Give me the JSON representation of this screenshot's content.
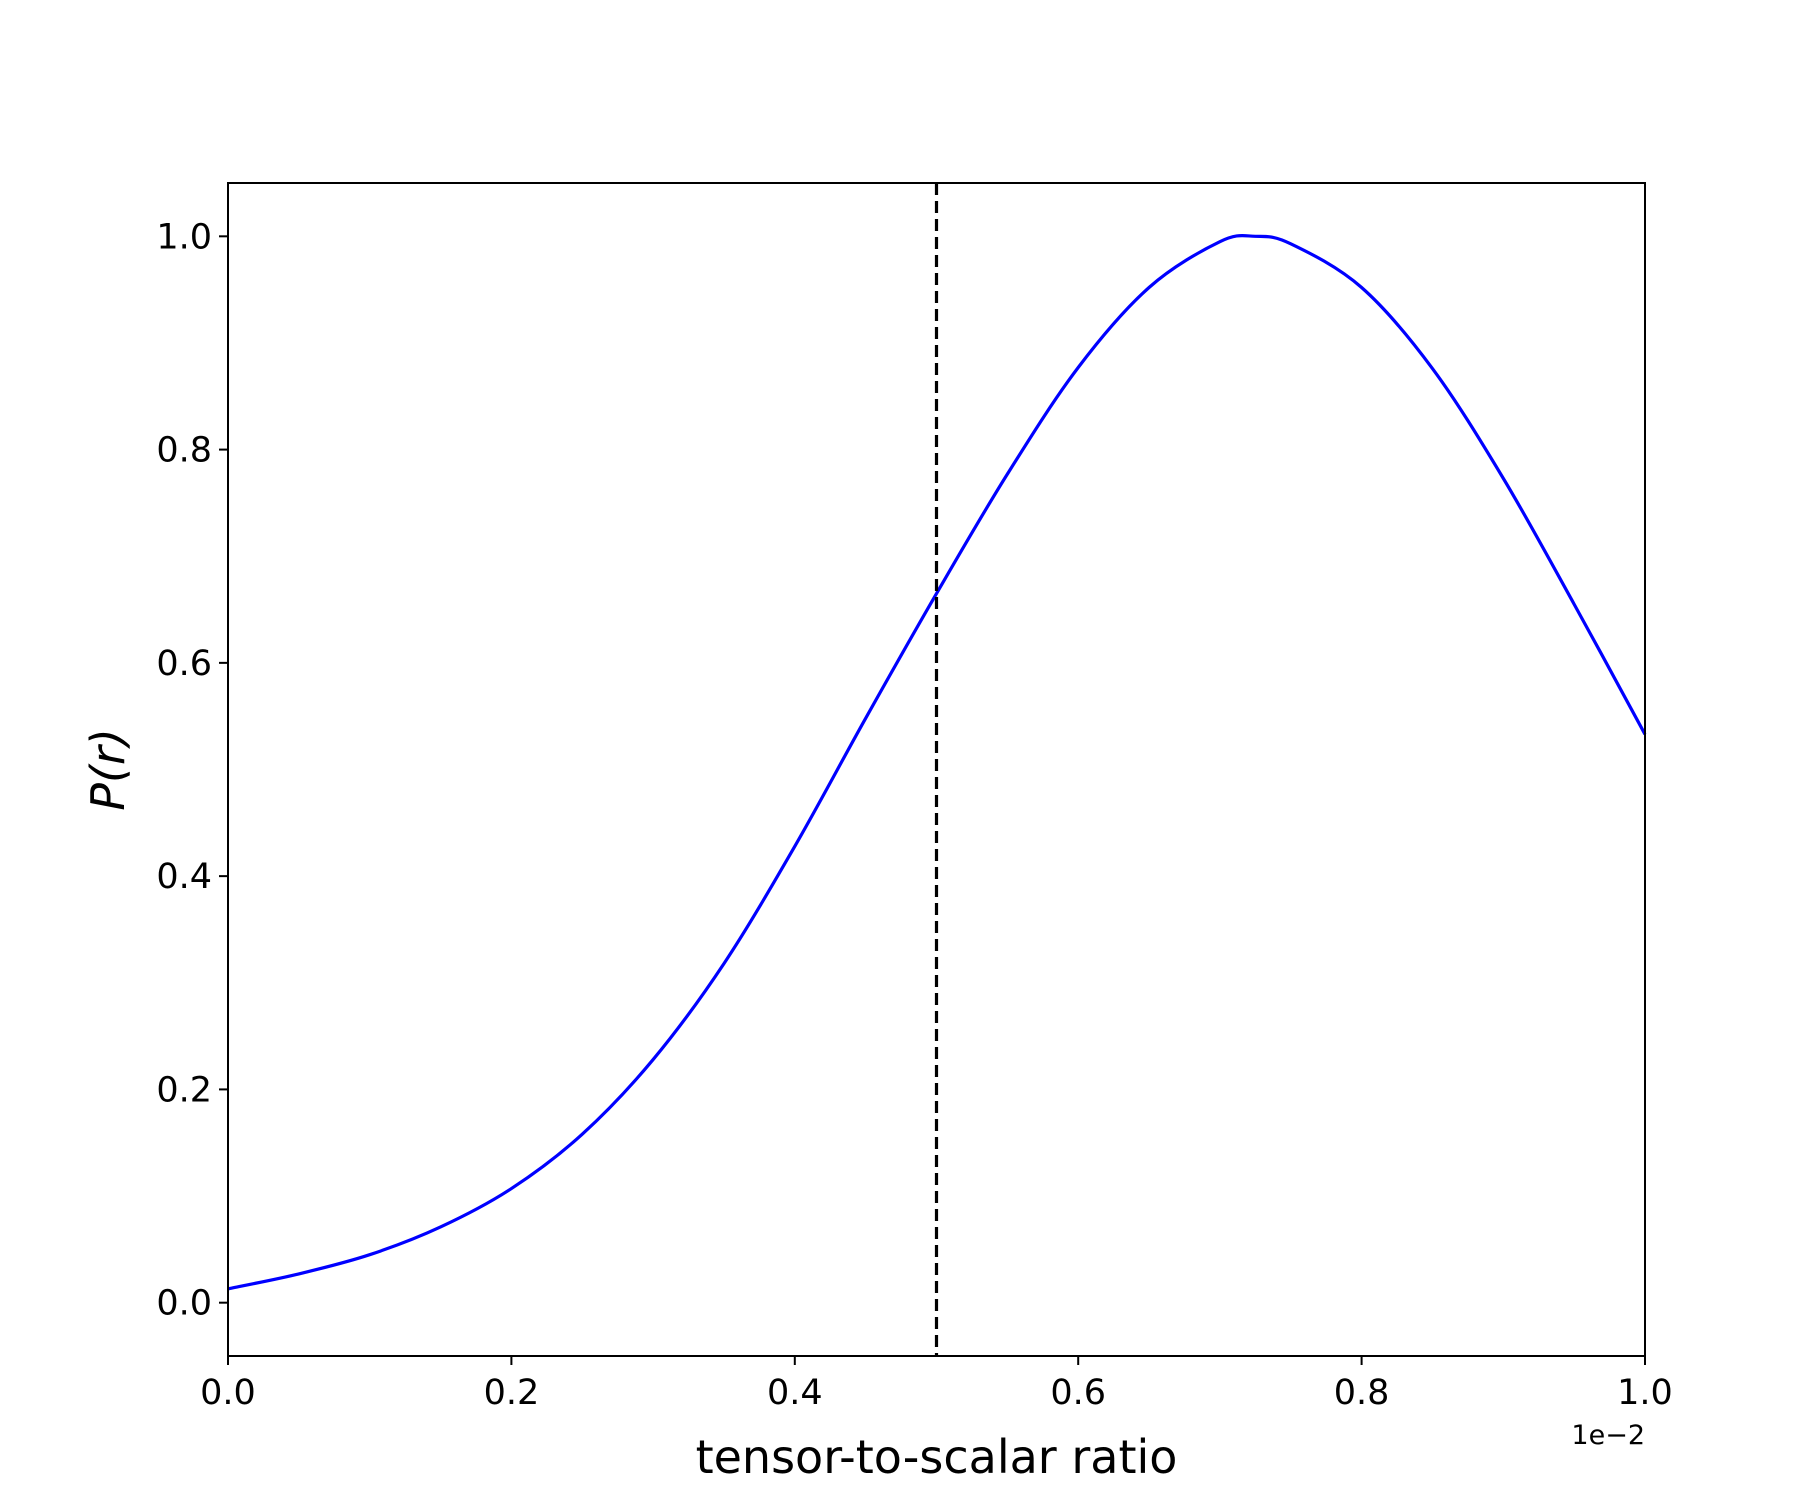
{
  "chart_data": {
    "type": "line",
    "title": "",
    "xlabel": "tensor-to-scalar ratio",
    "ylabel": "P(r)",
    "x_offset_text": "1e−2",
    "xlim": [
      0.0,
      1.0
    ],
    "ylim": [
      -0.05,
      1.05
    ],
    "grid": false,
    "xticks": [
      0.0,
      0.2,
      0.4,
      0.6,
      0.8,
      1.0
    ],
    "xtick_labels": [
      "0.0",
      "0.2",
      "0.4",
      "0.6",
      "0.8",
      "1.0"
    ],
    "yticks": [
      0.0,
      0.2,
      0.4,
      0.6,
      0.8,
      1.0
    ],
    "ytick_labels": [
      "0.0",
      "0.2",
      "0.4",
      "0.6",
      "0.8",
      "1.0"
    ],
    "series": [
      {
        "color": "#0000ff",
        "x": [
          0.0,
          0.05,
          0.1,
          0.15,
          0.2,
          0.25,
          0.3,
          0.35,
          0.4,
          0.45,
          0.5,
          0.55,
          0.6,
          0.65,
          0.7,
          0.725,
          0.75,
          0.8,
          0.85,
          0.9,
          0.95,
          1.0
        ],
        "y": [
          0.013,
          0.027,
          0.045,
          0.071,
          0.107,
          0.158,
          0.228,
          0.318,
          0.428,
          0.548,
          0.665,
          0.777,
          0.877,
          0.952,
          0.995,
          1.0,
          0.993,
          0.952,
          0.876,
          0.773,
          0.655,
          0.533
        ]
      }
    ],
    "vline": {
      "x": 0.5,
      "color": "#000000",
      "style": "dashed"
    }
  }
}
